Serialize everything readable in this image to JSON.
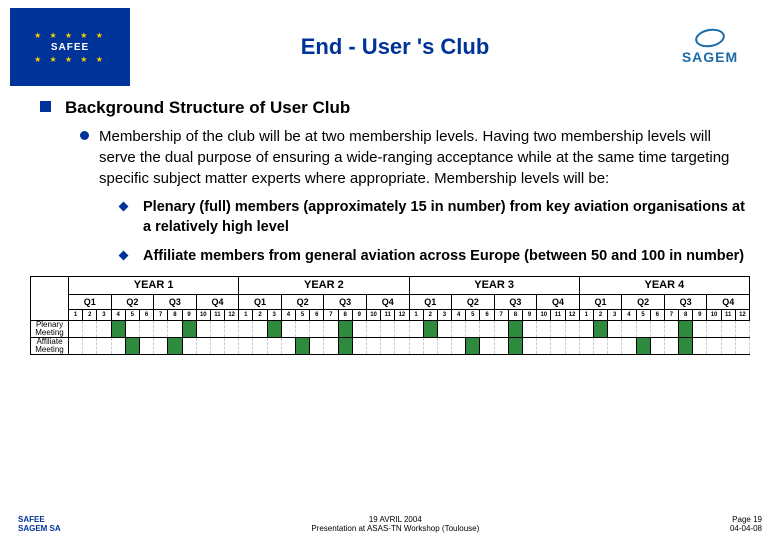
{
  "header": {
    "title": "End - User 's Club",
    "logo_left_text": "SAFEE",
    "logo_right_text": "SAGEM"
  },
  "content": {
    "h2": "Background Structure of User Club",
    "h3": "Membership of the club will be at two membership levels. Having two membership levels will serve the dual purpose of ensuring a wide-ranging acceptance while at the same time targeting specific subject matter experts where appropriate. Membership levels will be:",
    "h4a": "Plenary (full) members (approximately 15 in number) from key aviation organisations at a relatively high level",
    "h4b": "Affiliate members from general aviation across Europe (between 50 and 100 in number)"
  },
  "gantt": {
    "years": [
      "YEAR 1",
      "YEAR 2",
      "YEAR 3",
      "YEAR 4"
    ],
    "quarters": [
      "Q1",
      "Q2",
      "Q3",
      "Q4",
      "Q1",
      "Q2",
      "Q3",
      "Q4",
      "Q1",
      "Q2",
      "Q3",
      "Q4",
      "Q1",
      "Q2",
      "Q3",
      "Q4"
    ],
    "months": [
      "1",
      "2",
      "3",
      "4",
      "5",
      "6",
      "7",
      "8",
      "9",
      "10",
      "11",
      "12",
      "1",
      "2",
      "3",
      "4",
      "5",
      "6",
      "7",
      "8",
      "9",
      "10",
      "11",
      "12",
      "1",
      "2",
      "3",
      "4",
      "5",
      "6",
      "7",
      "8",
      "9",
      "10",
      "11",
      "12",
      "1",
      "2",
      "3",
      "4",
      "5",
      "6",
      "7",
      "8",
      "9",
      "10",
      "11",
      "12"
    ],
    "row1_label": "Plenary Meeting",
    "row2_label": "Affiliate Meeting",
    "fill_color": "#2e8b3e",
    "row1_fill": [
      3,
      8,
      14,
      19,
      25,
      31,
      37,
      43
    ],
    "row2_fill": [
      4,
      7,
      16,
      19,
      28,
      31,
      40,
      43
    ]
  },
  "footer": {
    "left_a": "SAFEE",
    "left_b": "SAGEM SA",
    "center_a": "19 AVRIL 2004",
    "center_b": "Presentation at ASAS-TN Workshop (Toulouse)",
    "right_a": "Page 19",
    "right_b": "04-04-08"
  }
}
